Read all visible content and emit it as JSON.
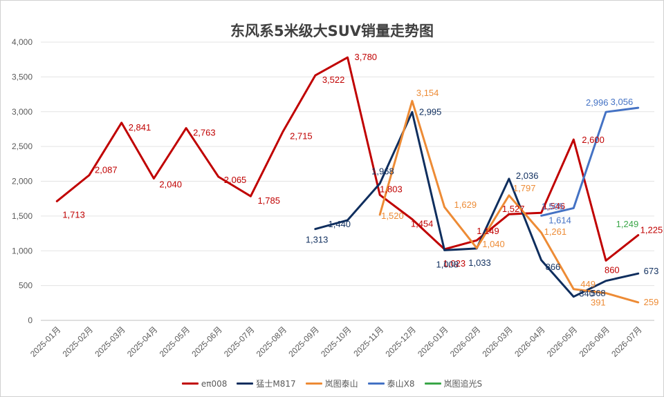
{
  "chart_data": {
    "type": "line",
    "title": "东风系5米级大SUV销量走势图",
    "xlabel": "",
    "ylabel": "",
    "ylim": [
      0,
      4000
    ],
    "yticks": [
      0,
      500,
      1000,
      1500,
      2000,
      2500,
      3000,
      3500,
      4000
    ],
    "ytick_labels": [
      "0",
      "500",
      "1,000",
      "1,500",
      "2,000",
      "2,500",
      "3,000",
      "3,500",
      "4,000"
    ],
    "grid": true,
    "legend_position": "bottom",
    "categories": [
      "2025-01月",
      "2025-02月",
      "2025-03月",
      "2025-04月",
      "2025-05月",
      "2025-06月",
      "2025-07月",
      "2025-08月",
      "2025-09月",
      "2025-10月",
      "2025-11月",
      "2025-12月",
      "2026-01月",
      "2026-02月",
      "2026-03月",
      "2026-04月",
      "2026-05月",
      "2026-06月",
      "2026-07月"
    ],
    "series": [
      {
        "name": "eπ008",
        "color": "#c00000",
        "values": [
          1713,
          2087,
          2841,
          2040,
          2763,
          2065,
          1785,
          2715,
          3522,
          3780,
          1803,
          1454,
          1023,
          1149,
          1527,
          1546,
          2600,
          860,
          1225
        ],
        "labels": [
          "1,713",
          "2,087",
          "2,841",
          "2,040",
          "2,763",
          "2,065",
          "1,785",
          "2,715",
          "3,522",
          "3,780",
          "1,803",
          "1,454",
          "1,023",
          "1,149",
          "1,527",
          "1,546",
          "2,600",
          "860",
          "1,225"
        ]
      },
      {
        "name": "猛士M817",
        "color": "#0f2e5e",
        "values": [
          null,
          null,
          null,
          null,
          null,
          null,
          null,
          null,
          1313,
          1440,
          1968,
          2995,
          1008,
          1033,
          2036,
          866,
          340,
          568,
          673
        ],
        "labels": [
          null,
          null,
          null,
          null,
          null,
          null,
          null,
          null,
          "1,313",
          "1,440",
          "1,968",
          "2,995",
          "1,008",
          "1,033",
          "2,036",
          "866",
          "340",
          "568",
          "673"
        ]
      },
      {
        "name": "岚图泰山",
        "color": "#ed8b35",
        "values": [
          null,
          null,
          null,
          null,
          null,
          null,
          null,
          null,
          null,
          null,
          1520,
          3154,
          1629,
          1040,
          1797,
          1261,
          449,
          391,
          259
        ],
        "labels": [
          null,
          null,
          null,
          null,
          null,
          null,
          null,
          null,
          null,
          null,
          "1,520",
          "3,154",
          "1,629",
          "1,040",
          "1,797",
          "1,261",
          "449",
          "391",
          "259"
        ]
      },
      {
        "name": "泰山X8",
        "color": "#4472c4",
        "values": [
          null,
          null,
          null,
          null,
          null,
          null,
          null,
          null,
          null,
          null,
          null,
          null,
          null,
          null,
          null,
          1505,
          1614,
          2996,
          3056
        ],
        "labels": [
          null,
          null,
          null,
          null,
          null,
          null,
          null,
          null,
          null,
          null,
          null,
          null,
          null,
          null,
          null,
          "1,505",
          "1,614",
          "2,996",
          "3,056"
        ]
      },
      {
        "name": "岚图追光S",
        "color": "#3aa648",
        "values": [
          null,
          null,
          null,
          null,
          null,
          null,
          null,
          null,
          null,
          null,
          null,
          null,
          null,
          null,
          null,
          null,
          null,
          null,
          1249
        ],
        "labels": [
          null,
          null,
          null,
          null,
          null,
          null,
          null,
          null,
          null,
          null,
          null,
          null,
          null,
          null,
          null,
          null,
          null,
          null,
          "1,249"
        ]
      }
    ]
  }
}
